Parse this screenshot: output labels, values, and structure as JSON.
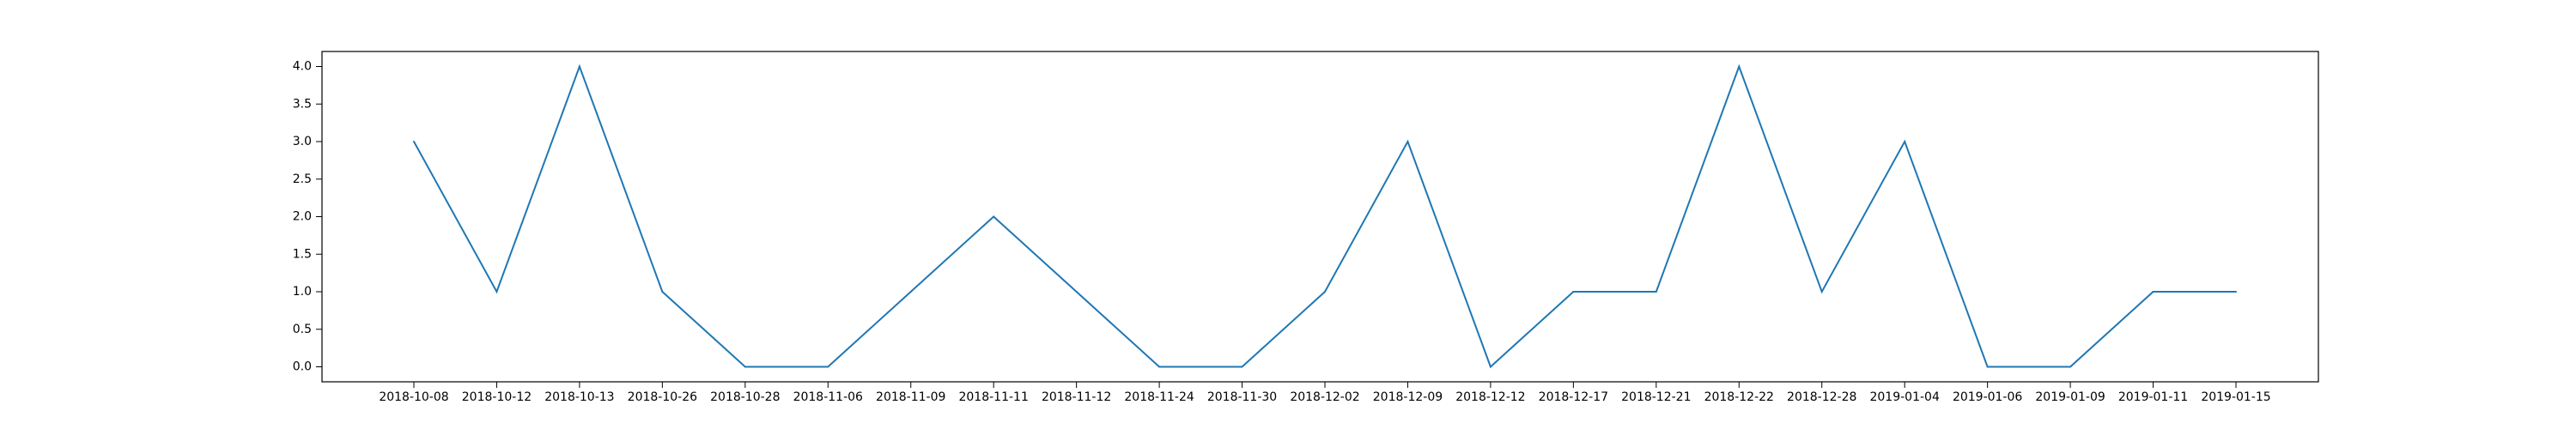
{
  "chart_data": {
    "type": "line",
    "title": "",
    "xlabel": "",
    "ylabel": "",
    "categories": [
      "2018-10-08",
      "2018-10-12",
      "2018-10-13",
      "2018-10-26",
      "2018-10-28",
      "2018-11-06",
      "2018-11-09",
      "2018-11-11",
      "2018-11-12",
      "2018-11-24",
      "2018-11-30",
      "2018-12-02",
      "2018-12-09",
      "2018-12-12",
      "2018-12-17",
      "2018-12-21",
      "2018-12-22",
      "2018-12-28",
      "2019-01-04",
      "2019-01-06",
      "2019-01-09",
      "2019-01-11",
      "2019-01-15"
    ],
    "series": [
      {
        "values": [
          3,
          1,
          4,
          1,
          0,
          0,
          1,
          2,
          1,
          0,
          0,
          1,
          3,
          0,
          1,
          1,
          4,
          1,
          3,
          0,
          0,
          1,
          1
        ]
      }
    ],
    "ylim": [
      -0.2,
      4.2
    ],
    "yticks": [
      0.0,
      0.5,
      1.0,
      1.5,
      2.0,
      2.5,
      3.0,
      3.5,
      4.0
    ],
    "ytick_labels": [
      "0.0",
      "0.5",
      "1.0",
      "1.5",
      "2.0",
      "2.5",
      "3.0",
      "3.5",
      "4.0"
    ],
    "line_color": "#1f77b4",
    "grid": false,
    "legend": false
  }
}
